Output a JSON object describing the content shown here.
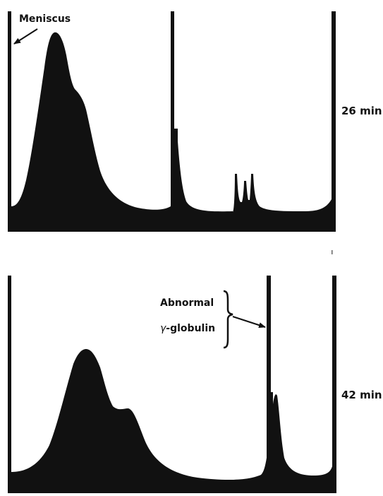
{
  "figure": {
    "labels": {
      "meniscus": "Meniscus",
      "abnormal_line1": "Abnormal",
      "abnormal_greek": "γ",
      "abnormal_line2": "-globulin",
      "top_time": "26 min",
      "bottom_time": "42 min"
    },
    "colors": {
      "ink": "#111111",
      "background": "#ffffff"
    }
  }
}
